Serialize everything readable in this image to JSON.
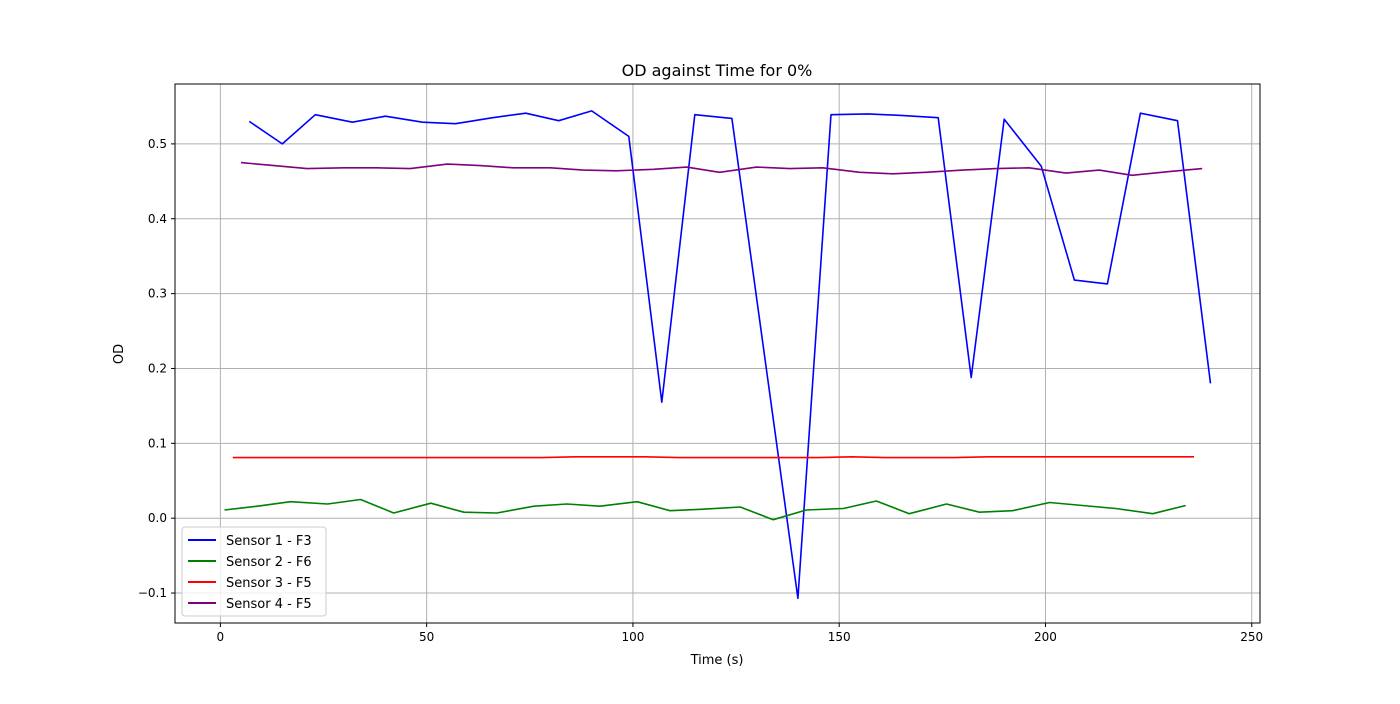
{
  "chart_data": {
    "type": "line",
    "title": "OD against Time for 0%",
    "xlabel": "Time (s)",
    "ylabel": "OD",
    "xlim": [
      -11,
      252
    ],
    "ylim": [
      -0.14,
      0.58
    ],
    "xticks": [
      0,
      50,
      100,
      150,
      200,
      250
    ],
    "yticks": [
      -0.1,
      0.0,
      0.1,
      0.2,
      0.3,
      0.4,
      0.5
    ],
    "ytick_labels": [
      "−0.1",
      "0.0",
      "0.1",
      "0.2",
      "0.3",
      "0.4",
      "0.5"
    ],
    "grid": true,
    "legend_position": "lower-left",
    "series": [
      {
        "name": "Sensor 1 - F3",
        "color": "#0000ff",
        "x": [
          7,
          15,
          23,
          32,
          40,
          49,
          57,
          66,
          74,
          82,
          90,
          99,
          107,
          115,
          124,
          140,
          148,
          157,
          165,
          174,
          182,
          190,
          199,
          207,
          215,
          223,
          232,
          240
        ],
        "y": [
          0.53,
          0.5,
          0.539,
          0.529,
          0.537,
          0.529,
          0.527,
          0.535,
          0.541,
          0.531,
          0.544,
          0.51,
          0.155,
          0.539,
          0.534,
          -0.107,
          0.539,
          0.54,
          0.538,
          0.535,
          0.188,
          0.533,
          0.47,
          0.318,
          0.313,
          0.541,
          0.531,
          0.18
        ]
      },
      {
        "name": "Sensor 2 - F6",
        "color": "#008000",
        "x": [
          1,
          9,
          17,
          26,
          34,
          42,
          51,
          59,
          67,
          76,
          84,
          92,
          101,
          109,
          117,
          126,
          134,
          142,
          151,
          159,
          167,
          176,
          184,
          192,
          201,
          209,
          217,
          226,
          234
        ],
        "y": [
          0.011,
          0.016,
          0.022,
          0.019,
          0.025,
          0.007,
          0.02,
          0.008,
          0.007,
          0.016,
          0.019,
          0.016,
          0.022,
          0.01,
          0.012,
          0.015,
          -0.002,
          0.011,
          0.013,
          0.023,
          0.006,
          0.019,
          0.008,
          0.01,
          0.021,
          0.017,
          0.013,
          0.006,
          0.017
        ]
      },
      {
        "name": "Sensor 3 - F5",
        "color": "#ff0000",
        "x": [
          3,
          11,
          20,
          28,
          36,
          45,
          53,
          61,
          70,
          78,
          86,
          95,
          103,
          111,
          120,
          128,
          136,
          145,
          153,
          161,
          170,
          178,
          186,
          195,
          203,
          211,
          220,
          228,
          236
        ],
        "y": [
          0.081,
          0.081,
          0.081,
          0.081,
          0.081,
          0.081,
          0.081,
          0.081,
          0.081,
          0.081,
          0.082,
          0.082,
          0.082,
          0.081,
          0.081,
          0.081,
          0.081,
          0.081,
          0.082,
          0.081,
          0.081,
          0.081,
          0.082,
          0.082,
          0.082,
          0.082,
          0.082,
          0.082,
          0.082
        ]
      },
      {
        "name": "Sensor 4 - F5",
        "color": "#800080",
        "x": [
          5,
          13,
          21,
          30,
          38,
          46,
          55,
          63,
          71,
          80,
          88,
          96,
          105,
          113,
          121,
          130,
          138,
          146,
          155,
          163,
          171,
          180,
          188,
          196,
          205,
          213,
          221,
          230,
          238
        ],
        "y": [
          0.475,
          0.471,
          0.467,
          0.468,
          0.468,
          0.467,
          0.473,
          0.471,
          0.468,
          0.468,
          0.465,
          0.464,
          0.466,
          0.469,
          0.462,
          0.469,
          0.467,
          0.468,
          0.462,
          0.46,
          0.462,
          0.465,
          0.467,
          0.468,
          0.461,
          0.465,
          0.458,
          0.463,
          0.467
        ]
      }
    ]
  }
}
